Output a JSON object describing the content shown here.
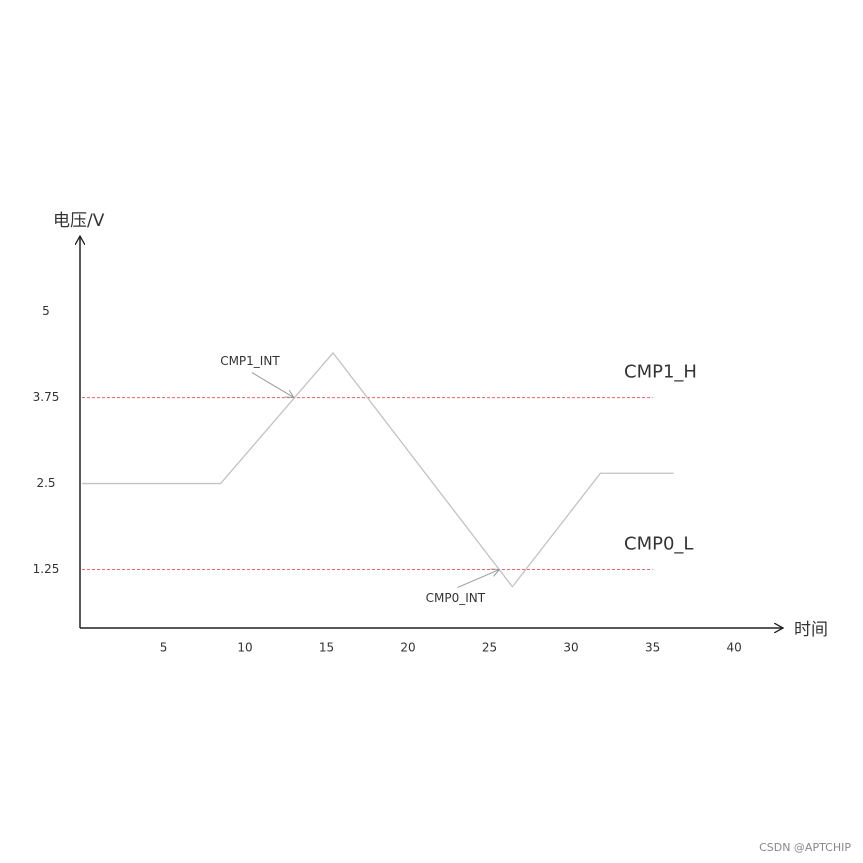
{
  "chart_data": {
    "type": "line",
    "ylabel": "电压/V",
    "xlabel": "时间",
    "x": [
      0,
      8.5,
      15.4,
      26.4,
      31.8,
      36.3
    ],
    "values": [
      2.5,
      2.5,
      4.4,
      1.0,
      2.65,
      2.65
    ],
    "color": "#c2c2c2",
    "xlim": [
      0,
      43
    ],
    "ylim": [
      0.4,
      6.1
    ],
    "xticks": [
      5,
      10,
      15,
      20,
      25,
      30,
      35,
      40
    ],
    "yticks": [
      1.25,
      2.5,
      3.75,
      5
    ],
    "reference_lines": [
      {
        "label": "CMP1_H",
        "value": 3.75,
        "span": [
          0,
          35
        ],
        "color": "#f06262"
      },
      {
        "label": "CMP0_L",
        "value": 1.25,
        "span": [
          0,
          35
        ],
        "color": "#f06262"
      }
    ],
    "annotations": [
      {
        "text": "CMP1_INT",
        "x": 13.0,
        "y": 3.75
      },
      {
        "text": "CMP0_INT",
        "x": 25.6,
        "y": 1.25
      }
    ],
    "watermark": "CSDN @APTCHIP"
  }
}
